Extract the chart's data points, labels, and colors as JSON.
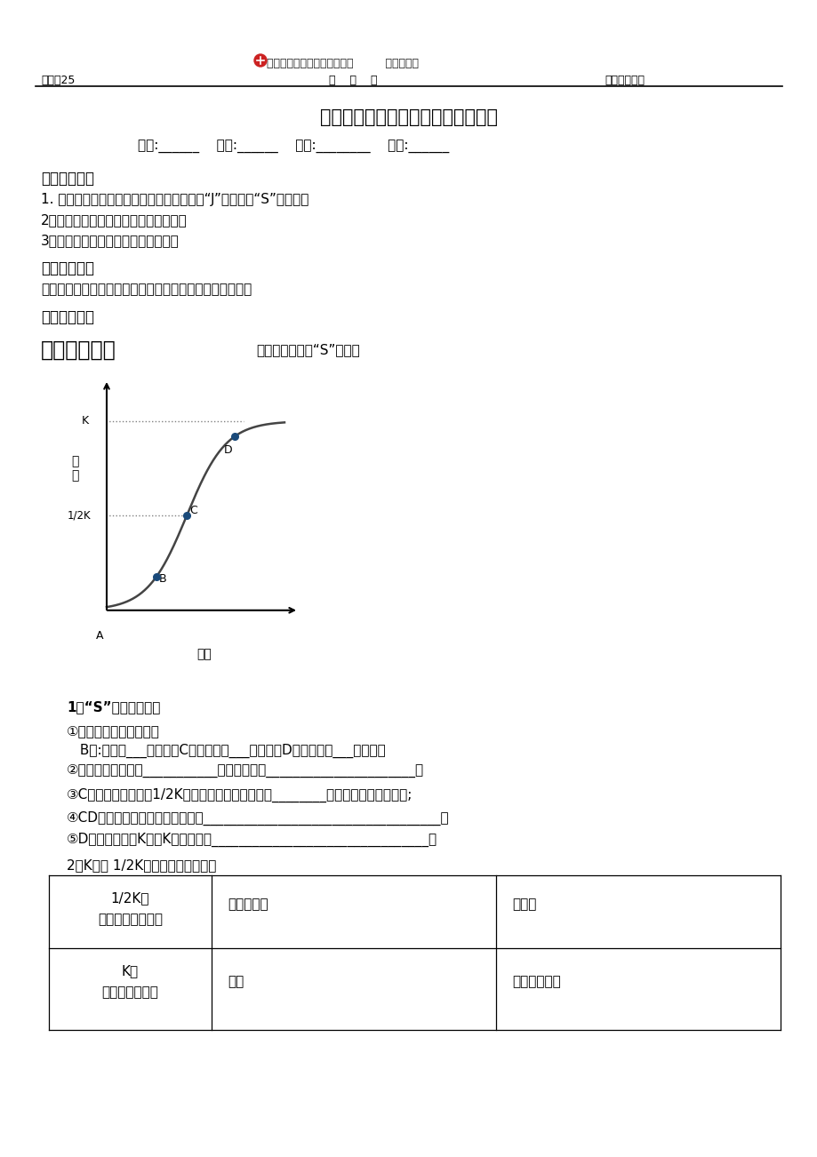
{
  "bg_color": "#ffffff",
  "header_logo_text": "为明学校学生课堂导学提纲（         生物学科）",
  "header_no": "编号：25",
  "header_date": "年    月    日",
  "header_author": "编制人：胡雪",
  "title": "课题：《种群数量的变化》第二课时",
  "info_line": "班级:______    姓名:______    小组:________    评价:______",
  "section1_title": "【学习目标】",
  "s1_item1": "1. 通过对本节的学习，掌握种群数量变化的“J”型曲线和“S”型曲线。",
  "s1_item2": "2．尝试建立数学模型解释种群的数变动",
  "s1_item3": "3．探究培养液中种群数量的动态变化",
  "section2_title": "【重点难点】",
  "s2_content": "尝试建构种群增长的数学模型，并据此解释种群数量的变化",
  "section3_title": "【导学流程】",
  "section4_title": "一、基础感知",
  "section4_subtitle": "一、种群增长的“S”型曲线",
  "analysis_title": "1、“S”型曲线分析：",
  "a_item1": "①分析出生率和死亡率：",
  "a_item2": " B点:出生率___死亡率；C点：出生率___死亡率；D点：出生率___死亡率；",
  "a_item3": "②数量增长最快的是___________段，其原因是______________________；",
  "a_item4": "③C点时种群的数量为1/2K値，此时种群的增长速率________；资源的再生能力最强;",
  "a_item5": "④CD段增长速度变慢的可能原因是___________________________________；",
  "a_item6": "⑤D点达到最大値K値，K値的含义是________________________________。",
  "table_title": "2．K値和 1/2K値在实践中的应用：",
  "t_r1c1a": "1/2K値",
  "t_r1c1b": "（最大增长速率）",
  "t_r1c2": "防治蟓虫：",
  "t_r1c3": "捕鱼：",
  "t_r2c1a": "K値",
  "t_r2c1b": "（环境容纳量）",
  "t_r2c2": "灭鼠",
  "t_r2c3": "保护大熊猫："
}
